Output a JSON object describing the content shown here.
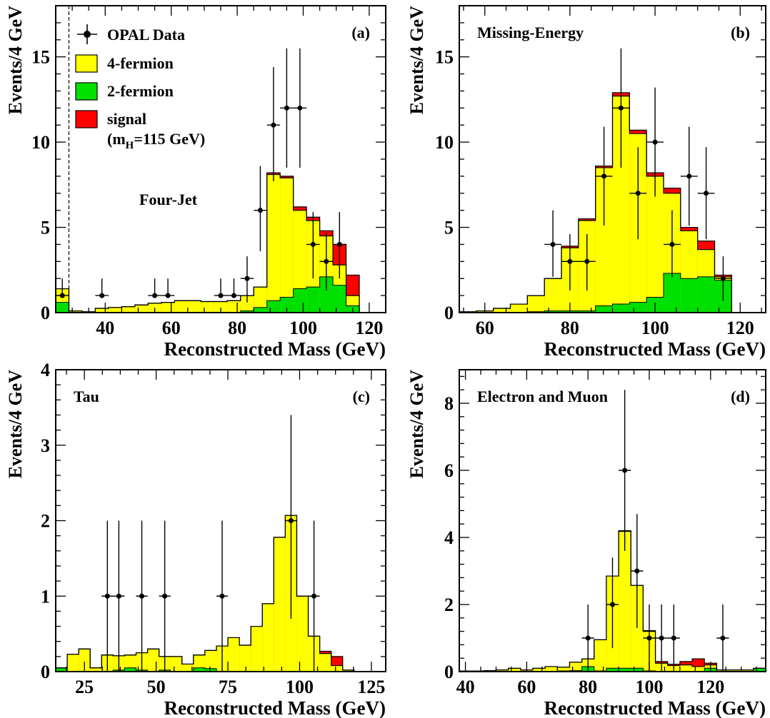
{
  "figure": {
    "xlabel": "Reconstructed Mass (GeV)",
    "ylabel": "Events/4 GeV"
  },
  "legend": {
    "data": "OPAL Data",
    "four_fermion": "4-fermion",
    "two_fermion": "2-fermion",
    "signal": "signal",
    "signal_note_prefix": "(m",
    "signal_note_sub": "H",
    "signal_note_suffix": "=115 GeV)"
  },
  "colors": {
    "four_fermion": "#ffff00",
    "two_fermion": "#00e000",
    "signal": "#ff0000",
    "data": "#000000"
  },
  "chart_data": [
    {
      "type": "bar",
      "panel": "(a)",
      "title": "Four-Jet",
      "xlabel": "Reconstructed Mass (GeV)",
      "ylabel": "Events/4 GeV",
      "xlim": [
        25,
        125
      ],
      "ylim": [
        0,
        18
      ],
      "xticks": [
        40,
        60,
        80,
        100,
        120
      ],
      "yticks": [
        0,
        5,
        10,
        15
      ],
      "cut_line_x": 29,
      "bin_edges": [
        25,
        29,
        33,
        37,
        41,
        45,
        49,
        53,
        57,
        61,
        65,
        69,
        73,
        77,
        81,
        85,
        89,
        93,
        97,
        101,
        105,
        109,
        113,
        117
      ],
      "two_fermion": [
        0.6,
        0,
        0,
        0,
        0,
        0,
        0,
        0,
        0,
        0,
        0,
        0,
        0,
        0,
        0.1,
        0.3,
        0.7,
        0.9,
        1.4,
        1.5,
        2.1,
        1.6,
        0.4
      ],
      "four_fermion_top": [
        1.4,
        0.1,
        0.05,
        0.25,
        0.3,
        0.35,
        0.45,
        0.55,
        0.6,
        0.7,
        0.7,
        0.65,
        0.65,
        0.7,
        1.0,
        1.5,
        8.1,
        7.9,
        6.0,
        5.4,
        4.5,
        2.8,
        1.0
      ],
      "signal_top": [
        1.4,
        0.1,
        0.05,
        0.25,
        0.3,
        0.35,
        0.45,
        0.55,
        0.6,
        0.7,
        0.7,
        0.65,
        0.65,
        0.7,
        1.0,
        1.5,
        8.2,
        8.0,
        6.2,
        5.6,
        4.8,
        4.0,
        2.2
      ],
      "data": [
        {
          "x": 27,
          "y": 1,
          "err": [
            0,
            1.0
          ]
        },
        {
          "x": 39,
          "y": 1,
          "err": [
            0,
            1.0
          ]
        },
        {
          "x": 55,
          "y": 1,
          "err": [
            0,
            1.0
          ]
        },
        {
          "x": 59,
          "y": 1,
          "err": [
            0,
            1.0
          ]
        },
        {
          "x": 75,
          "y": 1,
          "err": [
            0,
            1.0
          ]
        },
        {
          "x": 79,
          "y": 1,
          "err": [
            0,
            1.0
          ]
        },
        {
          "x": 83,
          "y": 2,
          "err": [
            1.4,
            1.3
          ]
        },
        {
          "x": 87,
          "y": 6,
          "err": [
            2.4,
            2.6
          ]
        },
        {
          "x": 91,
          "y": 11,
          "err": [
            3.3,
            3.4
          ]
        },
        {
          "x": 95,
          "y": 12,
          "err": [
            3.5,
            3.5
          ]
        },
        {
          "x": 99,
          "y": 12,
          "err": [
            3.5,
            3.5
          ]
        },
        {
          "x": 103,
          "y": 4,
          "err": [
            2.0,
            1.9
          ]
        },
        {
          "x": 107,
          "y": 3,
          "err": [
            1.7,
            1.7
          ]
        },
        {
          "x": 111,
          "y": 4,
          "err": [
            2.0,
            1.9
          ]
        }
      ]
    },
    {
      "type": "bar",
      "panel": "(b)",
      "title": "Missing-Energy",
      "xlabel": "Reconstructed Mass (GeV)",
      "ylabel": "Events/4 GeV",
      "xlim": [
        54,
        126
      ],
      "ylim": [
        0,
        18
      ],
      "xticks": [
        60,
        80,
        100,
        120
      ],
      "yticks": [
        0,
        5,
        10,
        15
      ],
      "bin_edges": [
        54,
        58,
        62,
        66,
        70,
        74,
        78,
        82,
        86,
        90,
        94,
        98,
        102,
        106,
        110,
        114,
        118
      ],
      "two_fermion": [
        0,
        0,
        0,
        0,
        0.05,
        0.1,
        0.1,
        0.1,
        0.4,
        0.5,
        0.6,
        0.9,
        2.3,
        2.0,
        2.1,
        1.9
      ],
      "four_fermion_top": [
        0.05,
        0.1,
        0.25,
        0.5,
        1.0,
        2.0,
        3.8,
        5.4,
        8.5,
        12.7,
        10.5,
        8.0,
        7.0,
        4.8,
        3.7,
        2.1
      ],
      "signal_top": [
        0.05,
        0.1,
        0.25,
        0.5,
        1.0,
        2.0,
        3.9,
        5.5,
        8.6,
        12.9,
        10.7,
        8.2,
        7.3,
        5.0,
        4.2,
        2.2
      ],
      "data": [
        {
          "x": 76,
          "y": 4,
          "err": [
            1.9,
            2.0
          ]
        },
        {
          "x": 80,
          "y": 3,
          "err": [
            1.7,
            1.6
          ]
        },
        {
          "x": 84,
          "y": 3,
          "err": [
            1.7,
            1.6
          ]
        },
        {
          "x": 88,
          "y": 8,
          "err": [
            2.9,
            2.9
          ]
        },
        {
          "x": 92,
          "y": 12,
          "err": [
            3.5,
            3.5
          ]
        },
        {
          "x": 96,
          "y": 7,
          "err": [
            2.7,
            2.7
          ]
        },
        {
          "x": 100,
          "y": 10,
          "err": [
            3.2,
            3.2
          ]
        },
        {
          "x": 104,
          "y": 4,
          "err": [
            1.9,
            2.0
          ]
        },
        {
          "x": 108,
          "y": 8,
          "err": [
            2.9,
            2.9
          ]
        },
        {
          "x": 112,
          "y": 7,
          "err": [
            2.7,
            2.7
          ]
        },
        {
          "x": 116,
          "y": 2,
          "err": [
            1.3,
            1.3
          ]
        }
      ]
    },
    {
      "type": "bar",
      "panel": "(c)",
      "title": "Tau",
      "xlabel": "Reconstructed Mass (GeV)",
      "ylabel": "Events/4 GeV",
      "xlim": [
        15,
        130
      ],
      "ylim": [
        0,
        4
      ],
      "xticks": [
        25,
        50,
        75,
        100,
        125
      ],
      "yticks": [
        0,
        1,
        2,
        3,
        4
      ],
      "bin_edges": [
        15,
        19,
        23,
        27,
        31,
        35,
        39,
        43,
        47,
        51,
        55,
        59,
        63,
        67,
        71,
        75,
        79,
        83,
        87,
        91,
        95,
        99,
        103,
        107,
        111,
        115,
        119
      ],
      "two_fermion": [
        0.05,
        0,
        0,
        0,
        0,
        0.02,
        0.05,
        0.02,
        0,
        0.02,
        0,
        0,
        0.05,
        0.04,
        0,
        0,
        0,
        0,
        0,
        0,
        0,
        0,
        0,
        0,
        0,
        0
      ],
      "four_fermion_top": [
        0.05,
        0.23,
        0.3,
        0.05,
        0.22,
        0.21,
        0.22,
        0.25,
        0.3,
        0.2,
        0.2,
        0.1,
        0.22,
        0.28,
        0.34,
        0.45,
        0.35,
        0.6,
        0.9,
        1.78,
        2.07,
        1.0,
        0.47,
        0.24,
        0.08,
        0.02
      ],
      "signal_top": [
        0.05,
        0.23,
        0.3,
        0.05,
        0.22,
        0.21,
        0.22,
        0.25,
        0.3,
        0.2,
        0.2,
        0.1,
        0.22,
        0.28,
        0.34,
        0.45,
        0.35,
        0.6,
        0.9,
        1.78,
        2.07,
        1.0,
        0.47,
        0.27,
        0.2,
        0.02
      ],
      "data": [
        {
          "x": 33,
          "y": 1,
          "err": [
            1.0,
            1.0
          ]
        },
        {
          "x": 37,
          "y": 1,
          "err": [
            1.0,
            1.0
          ]
        },
        {
          "x": 45,
          "y": 1,
          "err": [
            1.0,
            1.0
          ]
        },
        {
          "x": 53,
          "y": 1,
          "err": [
            1.0,
            1.0
          ]
        },
        {
          "x": 73,
          "y": 1,
          "err": [
            1.0,
            1.0
          ]
        },
        {
          "x": 97,
          "y": 2,
          "err": [
            1.3,
            1.4
          ]
        },
        {
          "x": 105,
          "y": 1,
          "err": [
            1.0,
            1.0
          ]
        }
      ]
    },
    {
      "type": "bar",
      "panel": "(d)",
      "title": "Electron and Muon",
      "xlabel": "Reconstructed Mass (GeV)",
      "ylabel": "Events/4 GeV",
      "xlim": [
        38,
        138
      ],
      "ylim": [
        0,
        9
      ],
      "xticks": [
        40,
        60,
        80,
        100,
        120
      ],
      "yticks": [
        0,
        2,
        4,
        6,
        8
      ],
      "bin_edges": [
        38,
        42,
        46,
        50,
        54,
        58,
        62,
        66,
        70,
        74,
        78,
        82,
        86,
        90,
        94,
        98,
        102,
        106,
        110,
        114,
        118,
        122,
        126,
        130,
        134,
        138
      ],
      "two_fermion": [
        0,
        0,
        0,
        0,
        0,
        0,
        0,
        0,
        0.02,
        0.03,
        0.15,
        0.02,
        0.1,
        0.1,
        0.1,
        0.02,
        0,
        0,
        0,
        0,
        0.1,
        0,
        0,
        0,
        0.1
      ],
      "four_fermion_top": [
        0.02,
        0.02,
        0.03,
        0.05,
        0.1,
        0.05,
        0.1,
        0.15,
        0.13,
        0.28,
        0.38,
        0.95,
        2.85,
        4.18,
        2.57,
        1.2,
        0.25,
        0.18,
        0.2,
        0.15,
        0.2,
        0.05,
        0.05,
        0.05,
        0.1
      ],
      "signal_top": [
        0.02,
        0.02,
        0.03,
        0.05,
        0.1,
        0.05,
        0.1,
        0.15,
        0.13,
        0.28,
        0.38,
        0.95,
        2.85,
        4.2,
        2.57,
        1.22,
        0.3,
        0.22,
        0.3,
        0.38,
        0.25,
        0.05,
        0.05,
        0.05,
        0.1
      ],
      "data": [
        {
          "x": 80,
          "y": 1,
          "err": [
            1.0,
            1.0
          ]
        },
        {
          "x": 88,
          "y": 2,
          "err": [
            1.3,
            1.4
          ]
        },
        {
          "x": 92,
          "y": 6,
          "err": [
            2.4,
            2.4
          ]
        },
        {
          "x": 96,
          "y": 3,
          "err": [
            1.7,
            1.7
          ]
        },
        {
          "x": 100,
          "y": 1,
          "err": [
            1.0,
            1.0
          ]
        },
        {
          "x": 104,
          "y": 1,
          "err": [
            1.0,
            1.0
          ]
        },
        {
          "x": 108,
          "y": 1,
          "err": [
            1.0,
            1.0
          ]
        },
        {
          "x": 124,
          "y": 1,
          "err": [
            1.0,
            1.0
          ]
        }
      ]
    }
  ]
}
